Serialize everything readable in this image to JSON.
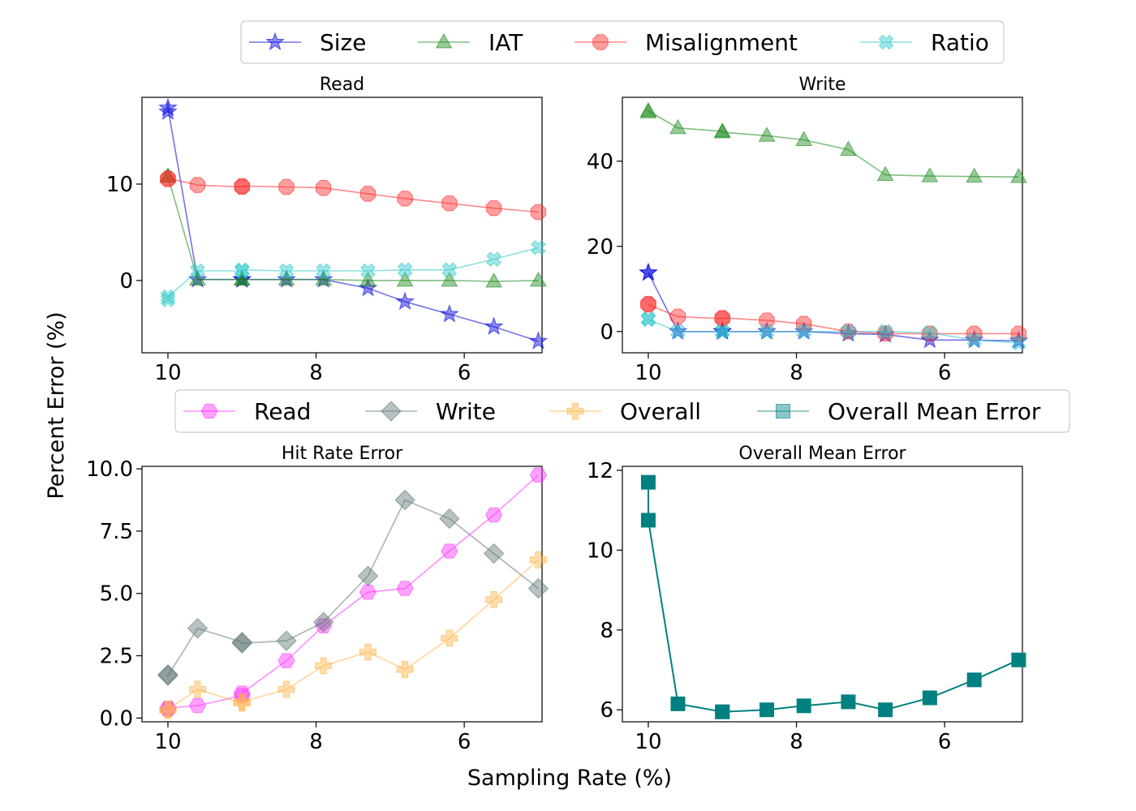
{
  "figure": {
    "ylabel": "Percent Error (%)",
    "xlabel": "Sampling Rate (%)"
  },
  "legends": [
    {
      "entries": [
        {
          "label": "Size",
          "color": "#0000dd",
          "marker": "star"
        },
        {
          "label": "IAT",
          "color": "#1a8a1a",
          "marker": "triangle"
        },
        {
          "label": "Misalignment",
          "color": "#ff2a2a",
          "marker": "octagon"
        },
        {
          "label": "Ratio",
          "color": "#2ec8c8",
          "marker": "x"
        }
      ]
    },
    {
      "entries": [
        {
          "label": "Read",
          "color": "#ff33ff",
          "marker": "hexagon"
        },
        {
          "label": "Write",
          "color": "#5f7676",
          "marker": "diamond"
        },
        {
          "label": "Overall",
          "color": "#ffb347",
          "marker": "plus"
        },
        {
          "label": "Overall Mean Error",
          "color": "#008080",
          "marker": "square"
        }
      ]
    }
  ],
  "chart_data": [
    {
      "type": "line",
      "title": "Read",
      "xlim": [
        10.35,
        4.95
      ],
      "ylim": [
        -7.5,
        19
      ],
      "xticks": [
        10,
        8,
        6
      ],
      "yticks": [
        0,
        10
      ],
      "x": [
        10,
        10,
        9.6,
        9,
        9,
        8.4,
        7.9,
        7.3,
        6.8,
        6.2,
        5.6,
        5
      ],
      "series": [
        {
          "name": "Size",
          "marker": "star",
          "color": "#0000dd",
          "values": [
            17.5,
            17.9,
            0.1,
            0.1,
            0.1,
            0.1,
            0.1,
            -0.8,
            -2.2,
            -3.5,
            -4.8,
            -6.3
          ]
        },
        {
          "name": "IAT",
          "marker": "triangle",
          "color": "#1a8a1a",
          "values": [
            10.8,
            10.8,
            0.1,
            0.1,
            0.1,
            0.1,
            0.1,
            0.0,
            0.0,
            0.0,
            -0.1,
            0.0
          ]
        },
        {
          "name": "Misalignment",
          "marker": "octagon",
          "color": "#ff2a2a",
          "values": [
            10.5,
            10.6,
            9.9,
            9.7,
            9.8,
            9.7,
            9.6,
            9.0,
            8.5,
            8.0,
            7.5,
            7.1
          ]
        },
        {
          "name": "Ratio",
          "marker": "x",
          "color": "#2ec8c8",
          "values": [
            -2.0,
            -1.7,
            1.0,
            1.0,
            1.1,
            1.0,
            1.0,
            1.0,
            1.1,
            1.1,
            2.2,
            3.4
          ]
        }
      ]
    },
    {
      "type": "line",
      "title": "Write",
      "xlim": [
        10.35,
        4.95
      ],
      "ylim": [
        -5,
        55
      ],
      "xticks": [
        10,
        8,
        6
      ],
      "yticks": [
        0,
        20,
        40
      ],
      "x": [
        10,
        10,
        9.6,
        9,
        9,
        8.4,
        7.9,
        7.3,
        6.8,
        6.2,
        5.6,
        5
      ],
      "series": [
        {
          "name": "Size",
          "marker": "star",
          "color": "#0000dd",
          "values": [
            13.8,
            13.8,
            0.0,
            0.0,
            0.0,
            0.0,
            0.0,
            -0.5,
            -0.7,
            -2.0,
            -2.0,
            -2.2
          ]
        },
        {
          "name": "IAT",
          "marker": "triangle",
          "color": "#1a8a1a",
          "values": [
            51.5,
            51.8,
            47.8,
            47.0,
            46.8,
            46.0,
            45.0,
            42.7,
            36.8,
            36.5,
            36.4,
            36.3
          ]
        },
        {
          "name": "Misalignment",
          "marker": "octagon",
          "color": "#ff2a2a",
          "values": [
            6.5,
            6.3,
            3.5,
            3.0,
            3.2,
            2.6,
            1.8,
            0.0,
            -0.5,
            -0.5,
            -0.5,
            -0.5
          ]
        },
        {
          "name": "Ratio",
          "marker": "x",
          "color": "#2ec8c8",
          "values": [
            3.0,
            2.8,
            0.0,
            0.0,
            0.0,
            0.0,
            0.0,
            0.0,
            0.0,
            -0.3,
            -2.0,
            -2.7
          ]
        }
      ]
    },
    {
      "type": "line",
      "title": "Hit Rate Error",
      "xlim": [
        10.35,
        4.95
      ],
      "ylim": [
        -0.15,
        10.1
      ],
      "xticks": [
        10,
        8,
        6
      ],
      "yticks": [
        0.0,
        2.5,
        5.0,
        7.5,
        10.0
      ],
      "ytick_labels": [
        "0.0",
        "2.5",
        "5.0",
        "7.5",
        "10.0"
      ],
      "x": [
        10,
        10,
        9.6,
        9,
        9,
        8.4,
        7.9,
        7.3,
        6.8,
        6.2,
        5.6,
        5
      ],
      "series": [
        {
          "name": "Read",
          "marker": "hexagon",
          "color": "#ff33ff",
          "values": [
            0.35,
            0.4,
            0.5,
            0.9,
            1.0,
            2.3,
            3.7,
            5.05,
            5.2,
            6.7,
            8.15,
            9.75
          ]
        },
        {
          "name": "Write",
          "marker": "diamond",
          "color": "#5f7676",
          "values": [
            1.75,
            1.7,
            3.6,
            3.05,
            3.0,
            3.1,
            3.85,
            5.7,
            8.75,
            8.0,
            6.6,
            5.2
          ]
        },
        {
          "name": "Overall",
          "marker": "plus",
          "color": "#ffb347",
          "values": [
            0.3,
            0.35,
            1.15,
            0.6,
            0.65,
            1.15,
            2.1,
            2.65,
            1.95,
            3.2,
            4.75,
            6.35
          ]
        }
      ]
    },
    {
      "type": "line",
      "title": "Overall Mean Error",
      "xlim": [
        10.35,
        4.95
      ],
      "ylim": [
        5.7,
        12.1
      ],
      "xticks": [
        10,
        8,
        6
      ],
      "yticks": [
        6,
        8,
        10,
        12
      ],
      "x": [
        10,
        10,
        9.6,
        9,
        9,
        8.4,
        7.9,
        7.3,
        6.8,
        6.2,
        5.6,
        5
      ],
      "series": [
        {
          "name": "Overall Mean Error",
          "marker": "square",
          "color": "#008080",
          "values": [
            11.7,
            10.75,
            6.15,
            5.95,
            5.95,
            6.0,
            6.1,
            6.2,
            6.0,
            6.3,
            6.75,
            7.25
          ]
        }
      ]
    }
  ]
}
